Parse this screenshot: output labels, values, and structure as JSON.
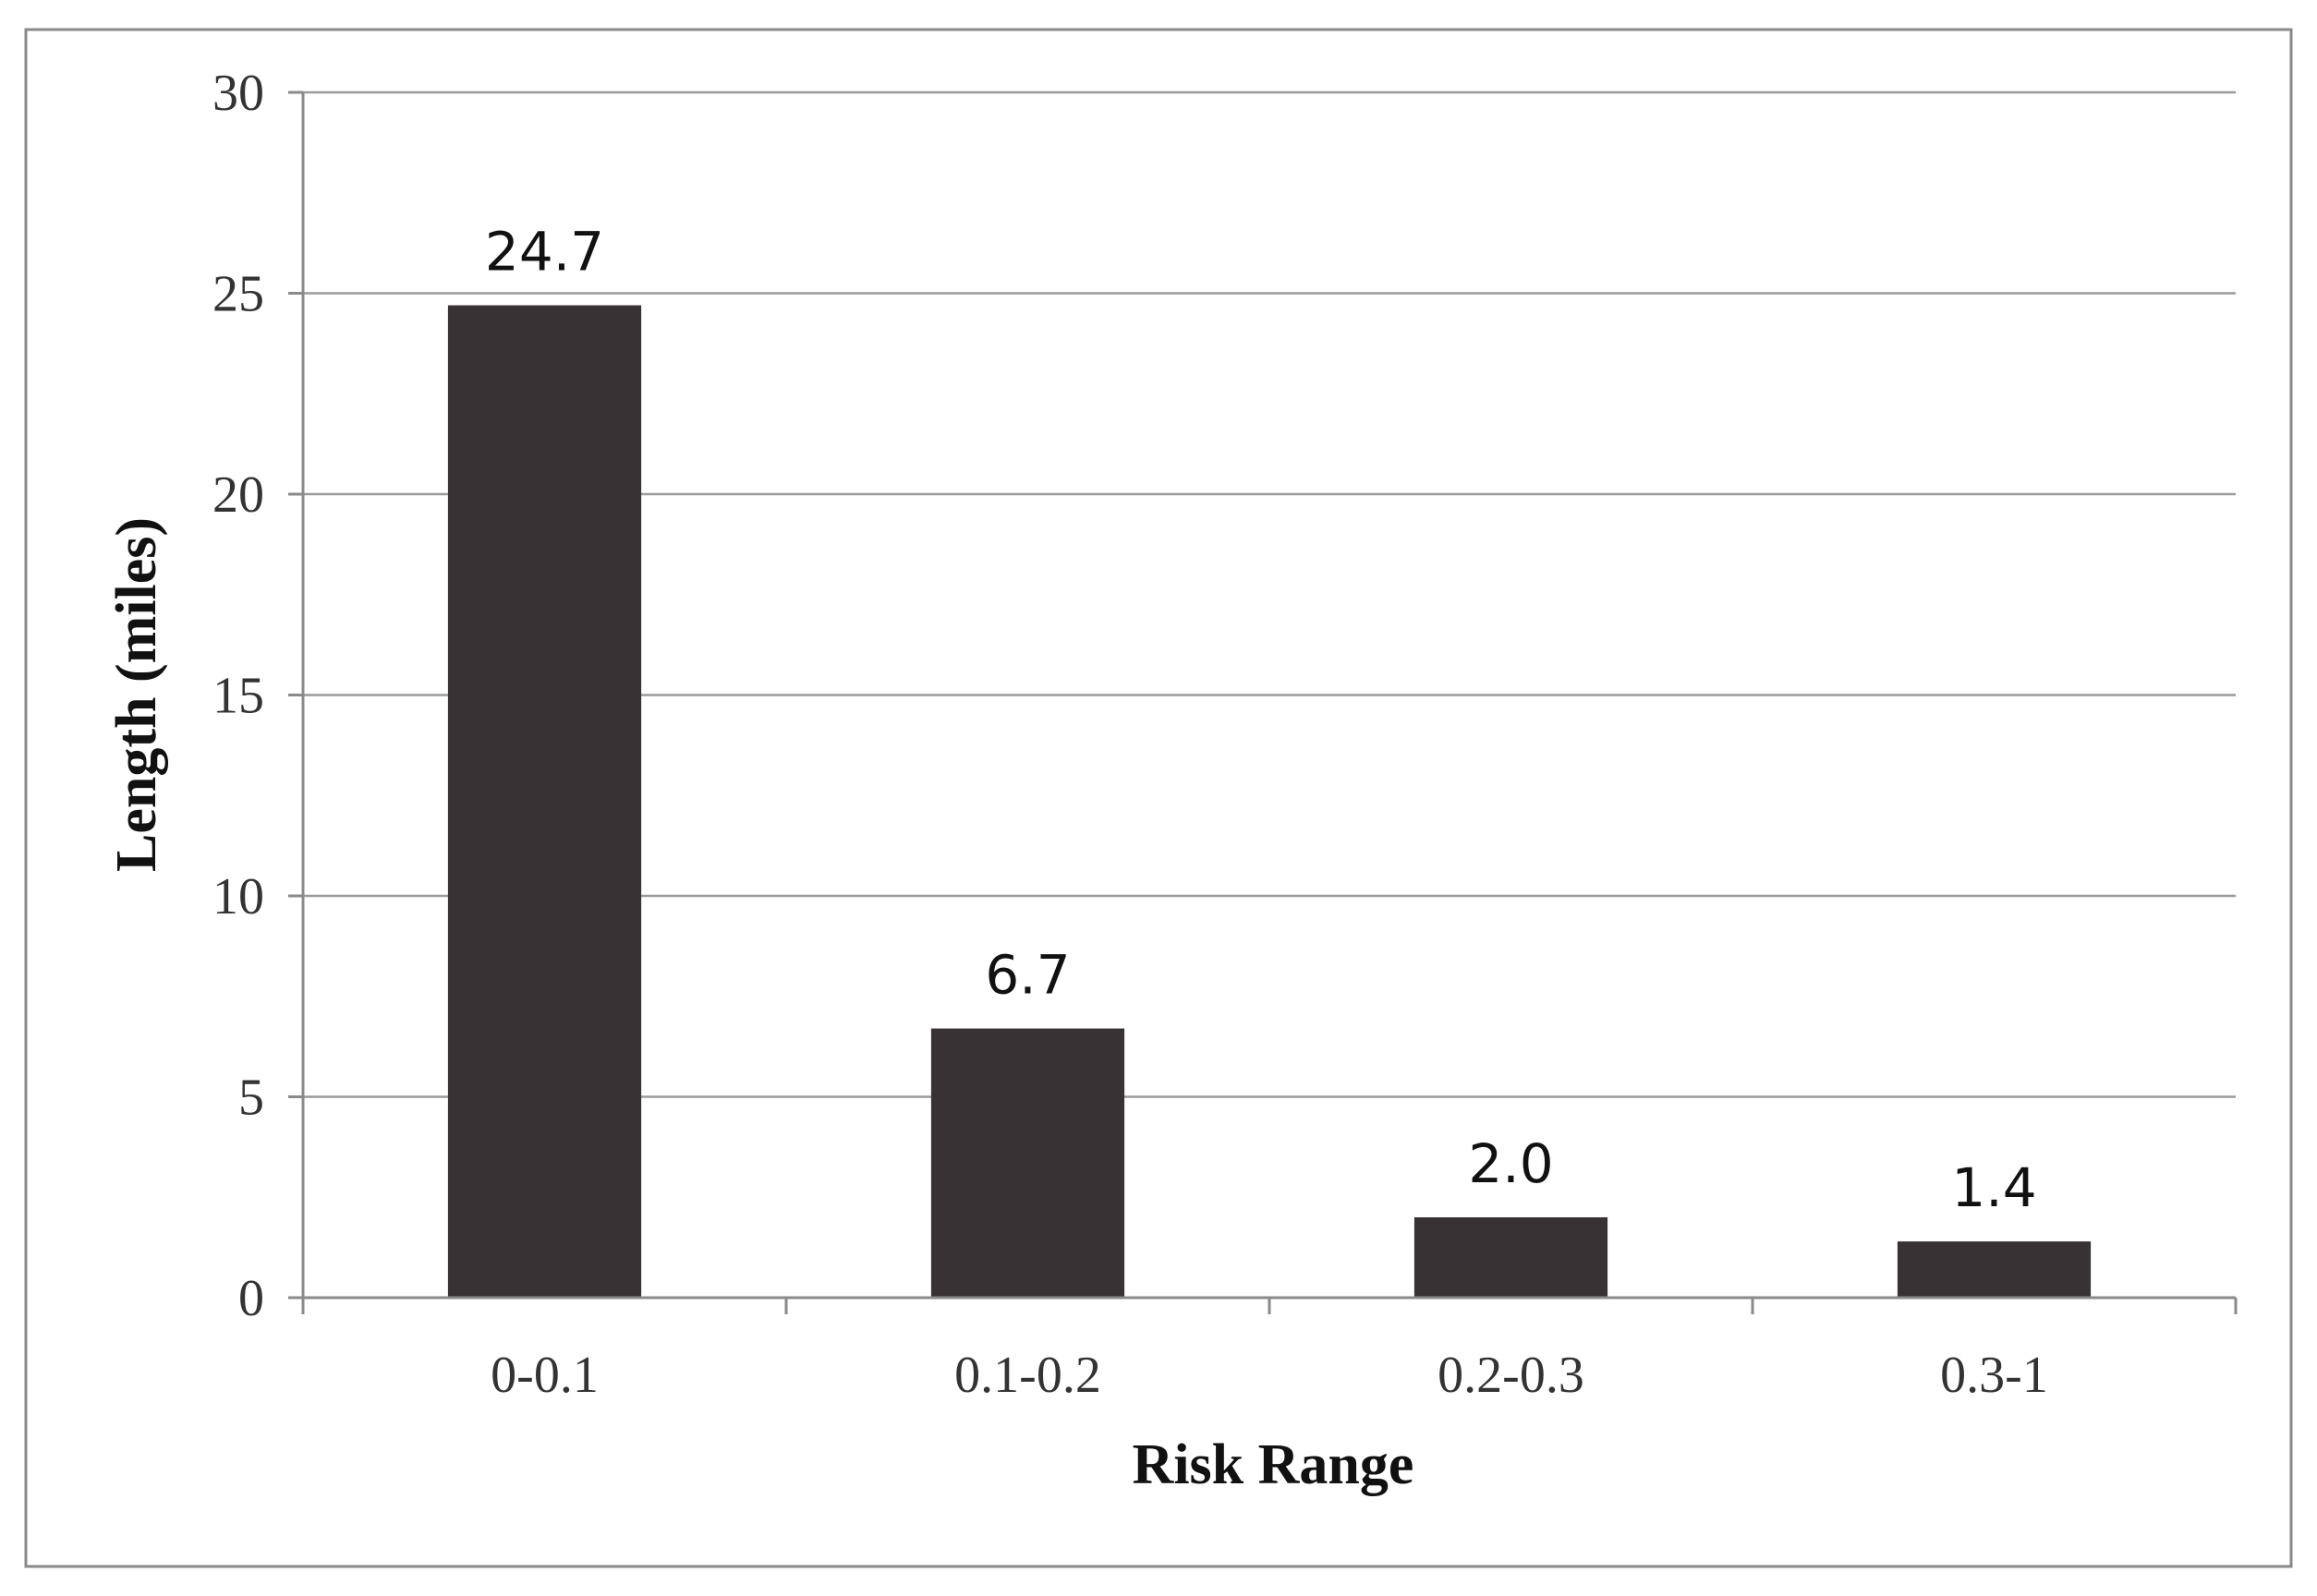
{
  "chart_data": {
    "type": "bar",
    "categories": [
      "0-0.1",
      "0.1-0.2",
      "0.2-0.3",
      "0.3-1"
    ],
    "values": [
      24.7,
      6.7,
      2.0,
      1.4
    ],
    "data_labels": [
      "24.7",
      "6.7",
      "2.0",
      "1.4"
    ],
    "title": "",
    "xlabel": "Risk Range",
    "ylabel": "Length (miles)",
    "ylim": [
      0,
      30
    ],
    "yticks": [
      0,
      5,
      10,
      15,
      20,
      25,
      30
    ],
    "grid": true,
    "legend": "none",
    "bar_color": "#373334"
  }
}
